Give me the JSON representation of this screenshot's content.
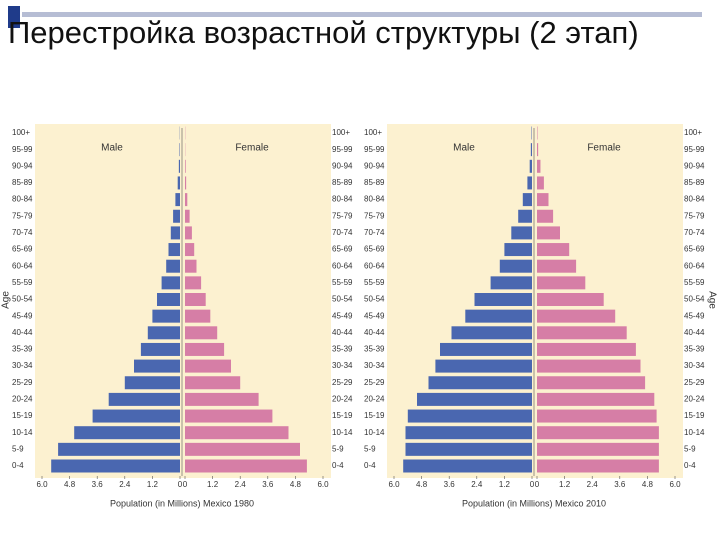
{
  "title": "Перестройка возрастной структуры (2 этап)",
  "chart_data": [
    {
      "type": "population-pyramid",
      "xlabel": "Population (in Millions) Mexico 1980",
      "ylabel": "Age",
      "categories": [
        "0-4",
        "5-9",
        "10-14",
        "15-19",
        "20-24",
        "25-29",
        "30-34",
        "35-39",
        "40-44",
        "45-49",
        "50-54",
        "55-59",
        "60-64",
        "65-69",
        "70-74",
        "75-79",
        "80-84",
        "85-89",
        "90-94",
        "95-99",
        "100+"
      ],
      "series": [
        {
          "name": "Male",
          "color": "#4a67b0",
          "values": [
            5.6,
            5.3,
            4.6,
            3.8,
            3.1,
            2.4,
            2.0,
            1.7,
            1.4,
            1.2,
            1.0,
            0.8,
            0.6,
            0.5,
            0.4,
            0.3,
            0.2,
            0.1,
            0.05,
            0.02,
            0.01
          ]
        },
        {
          "name": "Female",
          "color": "#d67ea6",
          "values": [
            5.3,
            5.0,
            4.5,
            3.8,
            3.2,
            2.4,
            2.0,
            1.7,
            1.4,
            1.1,
            0.9,
            0.7,
            0.5,
            0.4,
            0.3,
            0.2,
            0.1,
            0.05,
            0.03,
            0.01,
            0.01
          ]
        }
      ],
      "xlim": [
        0,
        6
      ],
      "xticks": [
        0,
        {
          "value": 1.2,
          "label": "1.2"
        },
        {
          "value": 2.4,
          "label": "2.4"
        },
        {
          "value": 3.6,
          "label": "3.6"
        },
        {
          "value": 4.8,
          "label": "4.8"
        },
        {
          "value": 6,
          "label": "6.0"
        }
      ]
    },
    {
      "type": "population-pyramid",
      "xlabel": "Population (in Millions) Mexico 2010",
      "ylabel": "Age",
      "categories": [
        "0-4",
        "5-9",
        "10-14",
        "15-19",
        "20-24",
        "25-29",
        "30-34",
        "35-39",
        "40-44",
        "45-49",
        "50-54",
        "55-59",
        "60-64",
        "65-69",
        "70-74",
        "75-79",
        "80-84",
        "85-89",
        "90-94",
        "95-99",
        "100+"
      ],
      "series": [
        {
          "name": "Male",
          "color": "#4a67b0",
          "values": [
            5.6,
            5.5,
            5.5,
            5.4,
            5.0,
            4.5,
            4.2,
            4.0,
            3.5,
            2.9,
            2.5,
            1.8,
            1.4,
            1.2,
            0.9,
            0.6,
            0.4,
            0.2,
            0.1,
            0.05,
            0.02
          ]
        },
        {
          "name": "Female",
          "color": "#d67ea6",
          "values": [
            5.3,
            5.3,
            5.3,
            5.2,
            5.1,
            4.7,
            4.5,
            4.3,
            3.9,
            3.4,
            2.9,
            2.1,
            1.7,
            1.4,
            1.0,
            0.7,
            0.5,
            0.3,
            0.15,
            0.05,
            0.02
          ]
        }
      ],
      "xlim": [
        0,
        6
      ],
      "xticks": [
        0,
        {
          "value": 1.2,
          "label": "1.2"
        },
        {
          "value": 2.4,
          "label": "2.4"
        },
        {
          "value": 3.6,
          "label": "3.6"
        },
        {
          "value": 4.8,
          "label": "4.8"
        },
        {
          "value": 6,
          "label": "6.0"
        }
      ]
    }
  ]
}
